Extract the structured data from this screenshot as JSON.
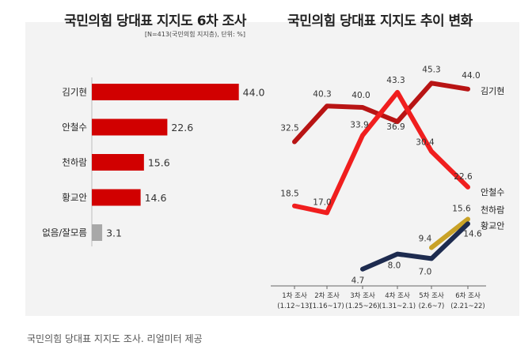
{
  "caption": "국민의힘 당대표 지지도 조사. 리얼미터 제공",
  "chart_data": [
    {
      "type": "bar",
      "orientation": "horizontal",
      "title": "국민의힘 당대표 지지도 6차 조사",
      "subtitle": "[N=413(국민의힘 지지층), 단위: %]",
      "categories": [
        "김기현",
        "안철수",
        "천하람",
        "황교안",
        "없음/잘모름"
      ],
      "values": [
        44.0,
        22.6,
        15.6,
        14.6,
        3.1
      ],
      "value_labels": [
        "44.0",
        "22.6",
        "15.6",
        "14.6",
        "3.1"
      ],
      "bar_colors": [
        "#d10000",
        "#d10000",
        "#d10000",
        "#d10000",
        "#a8a8a8"
      ]
    },
    {
      "type": "line",
      "title": "국민의힘 당대표 지지도 추이 변화",
      "categories": [
        "1차 조사",
        "2차 조사",
        "3차 조사",
        "4차 조사",
        "5차 조사",
        "6차 조사"
      ],
      "category_dates": [
        "(1.12~13)",
        "(1.16~17)",
        "(1.25~26)",
        "(1.31~2.1)",
        "(2.6~7)",
        "(2.21~22)"
      ],
      "series": [
        {
          "name": "김기현",
          "color": "#b81414",
          "values": [
            32.5,
            40.3,
            40.0,
            36.9,
            45.3,
            44.0
          ],
          "labels": [
            "32.5",
            "40.3",
            "40.0",
            "36.9",
            "45.3",
            "44.0"
          ]
        },
        {
          "name": "안철수",
          "color": "#f01e1e",
          "values": [
            18.5,
            17.0,
            33.9,
            43.3,
            30.4,
            22.6
          ],
          "labels": [
            "18.5",
            "17.0",
            "33.9",
            "43.3",
            "30.4",
            "22.6"
          ]
        },
        {
          "name": "천하람",
          "color": "#c9a227",
          "values": [
            null,
            null,
            null,
            null,
            9.4,
            15.6
          ],
          "labels": [
            "",
            "",
            "",
            "",
            "9.4",
            "15.6"
          ]
        },
        {
          "name": "황교안",
          "color": "#1d2b4f",
          "values": [
            null,
            null,
            4.7,
            8.0,
            7.0,
            14.6
          ],
          "labels": [
            "",
            "",
            "4.7",
            "8.0",
            "7.0",
            "14.6"
          ]
        }
      ]
    }
  ]
}
